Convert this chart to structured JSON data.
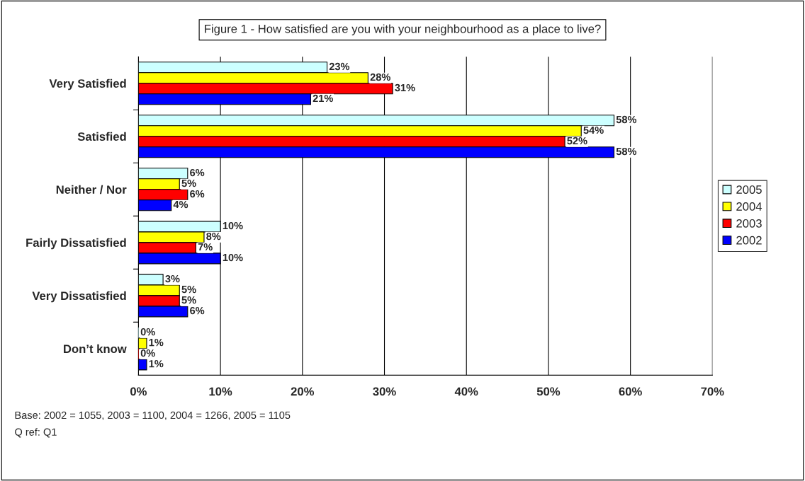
{
  "chart_data": {
    "type": "bar",
    "orientation": "horizontal",
    "title": "Figure 1 - How satisfied are you with your neighbourhood as a place to live?",
    "categories": [
      "Very Satisfied",
      "Satisfied",
      "Neither / Nor",
      "Fairly Dissatisfied",
      "Very Dissatisfied",
      "Don’t know"
    ],
    "series": [
      {
        "name": "2005",
        "color": "#ccffff",
        "values": [
          23,
          58,
          6,
          10,
          3,
          0
        ],
        "value_labels": [
          "23%",
          "58%",
          "6%",
          "10%",
          "3%",
          "0%"
        ]
      },
      {
        "name": "2004",
        "color": "#ffff00",
        "values": [
          28,
          54,
          5,
          8,
          5,
          1
        ],
        "value_labels": [
          "28%",
          "54%",
          "5%",
          "8%",
          "5%",
          "1%"
        ]
      },
      {
        "name": "2003",
        "color": "#ff0000",
        "values": [
          31,
          52,
          6,
          7,
          5,
          0
        ],
        "value_labels": [
          "31%",
          "52%",
          "6%",
          "7%",
          "5%",
          "0%"
        ]
      },
      {
        "name": "2002",
        "color": "#0000ff",
        "values": [
          21,
          58,
          4,
          10,
          6,
          1
        ],
        "value_labels": [
          "21%",
          "58%",
          "4%",
          "10%",
          "6%",
          "1%"
        ]
      }
    ],
    "xlim": [
      0,
      70
    ],
    "xticks": [
      {
        "value": 0,
        "label": "0%"
      },
      {
        "value": 10,
        "label": "10%"
      },
      {
        "value": 20,
        "label": "20%"
      },
      {
        "value": 30,
        "label": "30%"
      },
      {
        "value": 40,
        "label": "40%"
      },
      {
        "value": 50,
        "label": "50%"
      },
      {
        "value": 60,
        "label": "60%"
      },
      {
        "value": 70,
        "label": "70%"
      }
    ],
    "grid": "x",
    "legend": "right",
    "annotations": [
      "Base: 2002 = 1055, 2003 = 1100, 2004 = 1266, 2005 = 1105",
      "Q ref: Q1"
    ]
  }
}
